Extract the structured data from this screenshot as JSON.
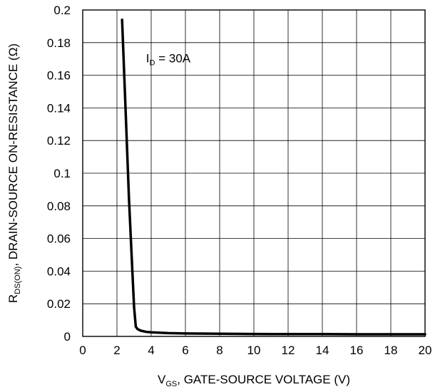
{
  "chart_data": {
    "type": "line",
    "title": "",
    "xlabel": {
      "main": "V",
      "sub": "GS",
      "rest": ", GATE-SOURCE VOLTAGE (V)"
    },
    "ylabel": {
      "main": "R",
      "sub": "DS(ON)",
      "rest": ", DRAIN-SOURCE ON-RESISTANCE (Ω)"
    },
    "annotation": {
      "main": "I",
      "sub": "D",
      "rest": " = 30A",
      "x": 3.7,
      "y": 0.168
    },
    "xlim": [
      0,
      20
    ],
    "ylim": [
      0,
      0.2
    ],
    "x_ticks": [
      "0",
      "2",
      "4",
      "6",
      "8",
      "10",
      "12",
      "14",
      "16",
      "18",
      "20"
    ],
    "y_ticks": [
      "0",
      "0.02",
      "0.04",
      "0.06",
      "0.08",
      "0.1",
      "0.12",
      "0.14",
      "0.16",
      "0.18",
      "0.2"
    ],
    "grid": true,
    "series": [
      {
        "x": [
          2.3,
          2.5,
          2.7,
          2.9,
          3.0,
          3.1,
          3.2,
          3.4,
          3.7,
          4,
          5,
          6,
          8,
          10,
          12,
          14,
          16,
          18,
          20
        ],
        "y": [
          0.194,
          0.14,
          0.085,
          0.04,
          0.018,
          0.006,
          0.0045,
          0.0035,
          0.0028,
          0.0025,
          0.002,
          0.0018,
          0.0016,
          0.0015,
          0.0014,
          0.0014,
          0.0013,
          0.0013,
          0.0013
        ]
      }
    ]
  }
}
